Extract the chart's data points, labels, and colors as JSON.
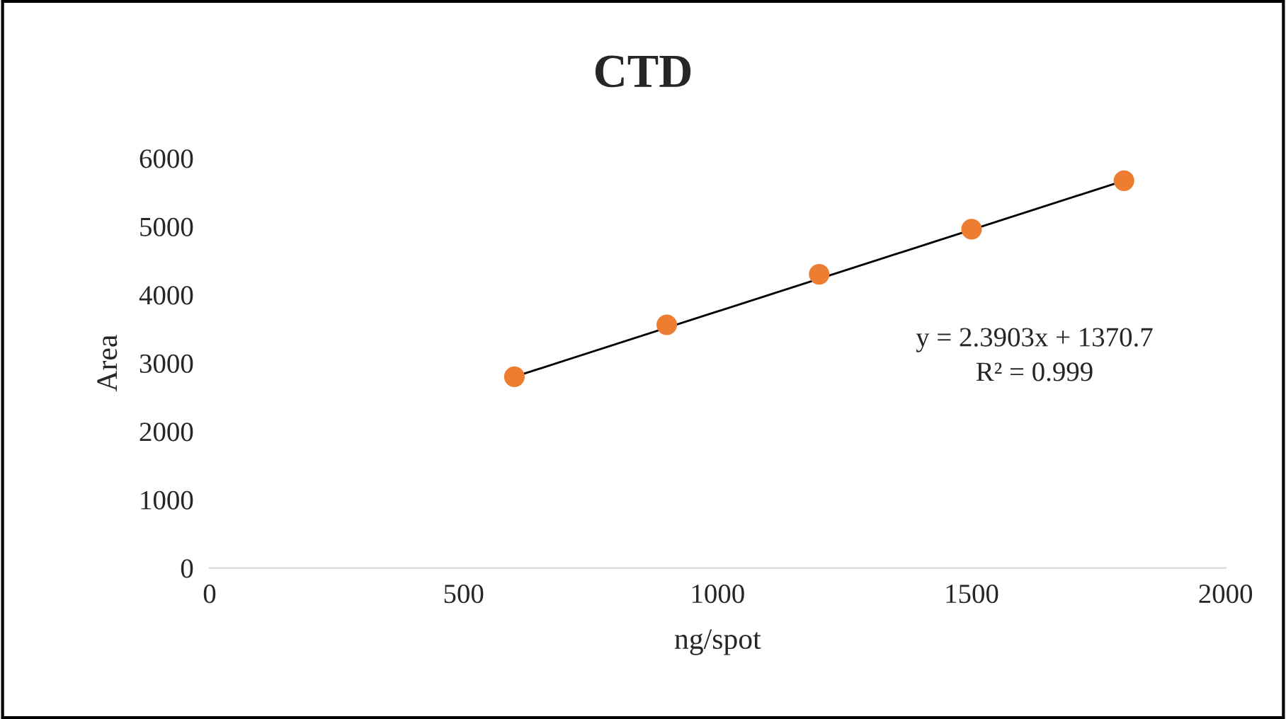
{
  "chart_data": {
    "type": "scatter",
    "title": "CTD",
    "xlabel": "ng/spot",
    "ylabel": "Area",
    "xlim": [
      0,
      2000
    ],
    "xticks": [
      0,
      500,
      1000,
      1500,
      2000
    ],
    "ylim": [
      0,
      6000
    ],
    "yticks": [
      0,
      1000,
      2000,
      3000,
      4000,
      5000,
      6000
    ],
    "grid": false,
    "legend": false,
    "series": [
      {
        "marker": "circle",
        "color": "#ed7d31",
        "x": [
          600,
          900,
          1200,
          1500,
          1800
        ],
        "values": [
          2800,
          3560,
          4300,
          4960,
          5670
        ]
      },
      {
        "type": "line",
        "color": "#000000",
        "line_style": "solid",
        "x": [
          600,
          1800
        ],
        "values": [
          2800,
          5670
        ]
      }
    ],
    "annotations": [
      "y = 2.3903x + 1370.7\nR² = 0.999"
    ]
  }
}
